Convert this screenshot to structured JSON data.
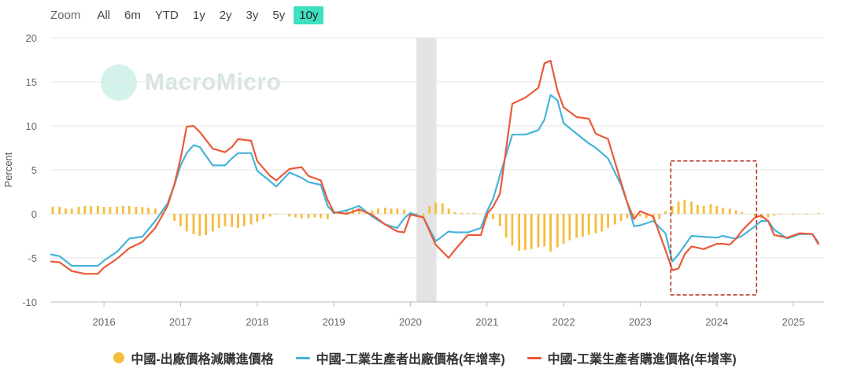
{
  "zoom": {
    "label": "Zoom",
    "buttons": [
      {
        "label": "All",
        "active": false
      },
      {
        "label": "6m",
        "active": false
      },
      {
        "label": "YTD",
        "active": false
      },
      {
        "label": "1y",
        "active": false
      },
      {
        "label": "2y",
        "active": false
      },
      {
        "label": "3y",
        "active": false
      },
      {
        "label": "5y",
        "active": false
      },
      {
        "label": "10y",
        "active": true
      }
    ]
  },
  "watermark": "MacroMicro",
  "chart_data": {
    "type": "line",
    "ylabel": "Percent",
    "ylim": [
      -10,
      20
    ],
    "yticks": [
      20,
      15,
      10,
      5,
      0,
      -5,
      -10
    ],
    "xlim": [
      2015.3,
      2025.4
    ],
    "xticks": [
      "2016",
      "2017",
      "2018",
      "2019",
      "2020",
      "2021",
      "2022",
      "2023",
      "2024",
      "2025"
    ],
    "grid": true,
    "shaded_period": [
      2020.08,
      2020.34
    ],
    "highlight_box": {
      "x": [
        2023.4,
        2024.52
      ],
      "y": [
        -9.2,
        6
      ]
    },
    "series": [
      {
        "name": "中國-出廠價格減購進價格",
        "kind": "bar",
        "color": "#f5bd3c",
        "x": [
          2015.33,
          2015.42,
          2015.5,
          2015.58,
          2015.67,
          2015.75,
          2015.83,
          2015.92,
          2016.0,
          2016.08,
          2016.17,
          2016.25,
          2016.33,
          2016.42,
          2016.5,
          2016.58,
          2016.67,
          2016.75,
          2016.83,
          2016.92,
          2017.0,
          2017.08,
          2017.17,
          2017.25,
          2017.33,
          2017.42,
          2017.5,
          2017.58,
          2017.67,
          2017.75,
          2017.83,
          2017.92,
          2018.0,
          2018.08,
          2018.17,
          2018.25,
          2018.33,
          2018.42,
          2018.5,
          2018.58,
          2018.67,
          2018.75,
          2018.83,
          2018.92,
          2019.0,
          2019.08,
          2019.17,
          2019.25,
          2019.33,
          2019.42,
          2019.5,
          2019.58,
          2019.67,
          2019.75,
          2019.83,
          2019.92,
          2020.0,
          2020.08,
          2020.17,
          2020.25,
          2020.33,
          2020.42,
          2020.5,
          2020.58,
          2020.67,
          2020.75,
          2020.83,
          2020.92,
          2021.0,
          2021.08,
          2021.17,
          2021.25,
          2021.33,
          2021.42,
          2021.5,
          2021.58,
          2021.67,
          2021.75,
          2021.83,
          2021.92,
          2022.0,
          2022.08,
          2022.17,
          2022.25,
          2022.33,
          2022.42,
          2022.5,
          2022.58,
          2022.67,
          2022.75,
          2022.83,
          2022.92,
          2023.0,
          2023.08,
          2023.17,
          2023.25,
          2023.33,
          2023.42,
          2023.5,
          2023.58,
          2023.67,
          2023.75,
          2023.83,
          2023.92,
          2024.0,
          2024.08,
          2024.17,
          2024.25,
          2024.33,
          2024.42,
          2024.5,
          2024.58,
          2024.67,
          2024.75,
          2024.83,
          2024.92,
          2025.0,
          2025.08,
          2025.17,
          2025.25,
          2025.33
        ],
        "values": [
          0.8,
          0.8,
          0.6,
          0.6,
          0.8,
          0.9,
          0.9,
          0.9,
          0.8,
          0.8,
          0.8,
          0.9,
          0.9,
          0.8,
          0.8,
          0.7,
          0.6,
          0.3,
          0.0,
          -0.8,
          -1.4,
          -2.0,
          -2.3,
          -2.5,
          -2.4,
          -2.0,
          -1.6,
          -1.4,
          -1.5,
          -1.6,
          -1.4,
          -1.2,
          -0.9,
          -0.6,
          -0.3,
          -0.1,
          0.0,
          -0.3,
          -0.4,
          -0.5,
          -0.5,
          -0.4,
          -0.5,
          -0.6,
          0.1,
          0.2,
          0.3,
          0.5,
          0.6,
          0.3,
          0.4,
          0.6,
          0.7,
          0.6,
          0.6,
          0.5,
          0.2,
          0.1,
          -0.3,
          0.9,
          1.3,
          1.2,
          0.6,
          0.2,
          0.1,
          0.1,
          0.1,
          0.0,
          -0.5,
          -0.6,
          -1.4,
          -2.7,
          -3.6,
          -4.2,
          -4.1,
          -4.0,
          -3.8,
          -3.7,
          -4.3,
          -3.8,
          -3.4,
          -3.0,
          -2.7,
          -2.6,
          -2.4,
          -2.2,
          -2.0,
          -1.6,
          -1.2,
          -0.8,
          -0.5,
          -0.2,
          -0.3,
          -0.5,
          -0.6,
          -0.6,
          0.3,
          0.9,
          1.4,
          1.6,
          1.4,
          1.0,
          0.9,
          1.1,
          0.9,
          0.7,
          0.6,
          0.4,
          0.2,
          0.0,
          -0.3,
          -0.5,
          -0.4,
          -0.2,
          -0.1,
          0.0,
          -0.1,
          0.0,
          -0.1,
          0.0,
          0.1
        ]
      },
      {
        "name": "中國-工業生產者出廠價格(年增率)",
        "kind": "line",
        "color": "#47b3d9",
        "x": [
          2015.3,
          2015.42,
          2015.58,
          2015.75,
          2015.92,
          2016.0,
          2016.17,
          2016.33,
          2016.5,
          2016.67,
          2016.83,
          2016.92,
          2017.0,
          2017.08,
          2017.17,
          2017.25,
          2017.42,
          2017.58,
          2017.67,
          2017.75,
          2017.92,
          2018.0,
          2018.17,
          2018.25,
          2018.42,
          2018.58,
          2018.67,
          2018.83,
          2018.92,
          2019.0,
          2019.17,
          2019.33,
          2019.5,
          2019.67,
          2019.83,
          2019.92,
          2020.0,
          2020.17,
          2020.33,
          2020.5,
          2020.58,
          2020.75,
          2020.92,
          2021.0,
          2021.08,
          2021.17,
          2021.33,
          2021.5,
          2021.67,
          2021.75,
          2021.83,
          2021.92,
          2022.0,
          2022.17,
          2022.33,
          2022.42,
          2022.58,
          2022.75,
          2022.83,
          2022.92,
          2023.0,
          2023.17,
          2023.33,
          2023.42,
          2023.5,
          2023.58,
          2023.67,
          2023.83,
          2024.0,
          2024.08,
          2024.17,
          2024.25,
          2024.33,
          2024.5,
          2024.58,
          2024.67,
          2024.75,
          2024.92,
          2025.08,
          2025.25,
          2025.33
        ],
        "values": [
          -4.6,
          -4.8,
          -5.9,
          -5.9,
          -5.9,
          -5.3,
          -4.3,
          -2.8,
          -2.6,
          -0.8,
          1.2,
          3.3,
          5.5,
          6.9,
          7.8,
          7.6,
          5.5,
          5.5,
          6.3,
          6.9,
          6.9,
          4.9,
          3.7,
          3.1,
          4.7,
          4.1,
          3.6,
          3.3,
          0.9,
          0.1,
          0.4,
          0.9,
          -0.3,
          -1.2,
          -1.6,
          -0.5,
          0.1,
          -0.4,
          -3.1,
          -2.0,
          -2.1,
          -2.1,
          -1.6,
          0.3,
          1.7,
          4.4,
          9.0,
          9.0,
          9.5,
          10.7,
          13.5,
          12.9,
          10.3,
          9.1,
          8.0,
          7.5,
          6.3,
          3.3,
          1.3,
          -1.4,
          -1.3,
          -0.8,
          -2.2,
          -5.4,
          -4.6,
          -3.6,
          -2.5,
          -2.6,
          -2.7,
          -2.5,
          -2.7,
          -2.8,
          -2.5,
          -1.4,
          -0.8,
          -0.8,
          -1.8,
          -2.8,
          -2.3,
          -2.3,
          -3.3
        ]
      },
      {
        "name": "中國-工業生產者購進價格(年增率)",
        "kind": "line",
        "color": "#ea5a3a",
        "x": [
          2015.3,
          2015.42,
          2015.58,
          2015.75,
          2015.92,
          2016.0,
          2016.17,
          2016.33,
          2016.5,
          2016.67,
          2016.83,
          2016.92,
          2017.0,
          2017.08,
          2017.17,
          2017.25,
          2017.42,
          2017.58,
          2017.67,
          2017.75,
          2017.92,
          2018.0,
          2018.17,
          2018.25,
          2018.42,
          2018.58,
          2018.67,
          2018.83,
          2018.92,
          2019.0,
          2019.17,
          2019.33,
          2019.5,
          2019.67,
          2019.83,
          2019.92,
          2020.0,
          2020.17,
          2020.33,
          2020.5,
          2020.58,
          2020.75,
          2020.92,
          2021.0,
          2021.08,
          2021.17,
          2021.33,
          2021.5,
          2021.67,
          2021.75,
          2021.83,
          2021.92,
          2022.0,
          2022.17,
          2022.33,
          2022.42,
          2022.58,
          2022.75,
          2022.83,
          2022.92,
          2023.0,
          2023.17,
          2023.33,
          2023.42,
          2023.5,
          2023.58,
          2023.67,
          2023.83,
          2024.0,
          2024.08,
          2024.17,
          2024.25,
          2024.33,
          2024.5,
          2024.58,
          2024.67,
          2024.75,
          2024.92,
          2025.08,
          2025.25,
          2025.33
        ],
        "values": [
          -5.4,
          -5.5,
          -6.5,
          -6.8,
          -6.8,
          -6.1,
          -5.1,
          -3.9,
          -3.2,
          -1.6,
          0.9,
          3.4,
          6.3,
          9.9,
          10.0,
          9.3,
          7.4,
          7.0,
          7.6,
          8.5,
          8.3,
          6.0,
          4.3,
          3.8,
          5.1,
          5.3,
          4.3,
          3.8,
          1.6,
          0.2,
          0.0,
          0.5,
          -0.1,
          -1.2,
          -2.0,
          -2.1,
          -0.1,
          -0.4,
          -3.5,
          -5.0,
          -4.1,
          -2.4,
          -2.4,
          0.0,
          0.8,
          2.3,
          12.5,
          13.2,
          14.3,
          17.1,
          17.4,
          14.0,
          12.1,
          11.0,
          10.8,
          9.1,
          8.5,
          3.6,
          1.3,
          -0.6,
          0.3,
          -0.3,
          -4.1,
          -6.4,
          -6.2,
          -4.6,
          -3.7,
          -4.0,
          -3.4,
          -3.4,
          -3.5,
          -2.8,
          -1.9,
          -0.4,
          -0.2,
          -0.8,
          -2.4,
          -2.7,
          -2.2,
          -2.3,
          -3.5
        ]
      }
    ]
  }
}
